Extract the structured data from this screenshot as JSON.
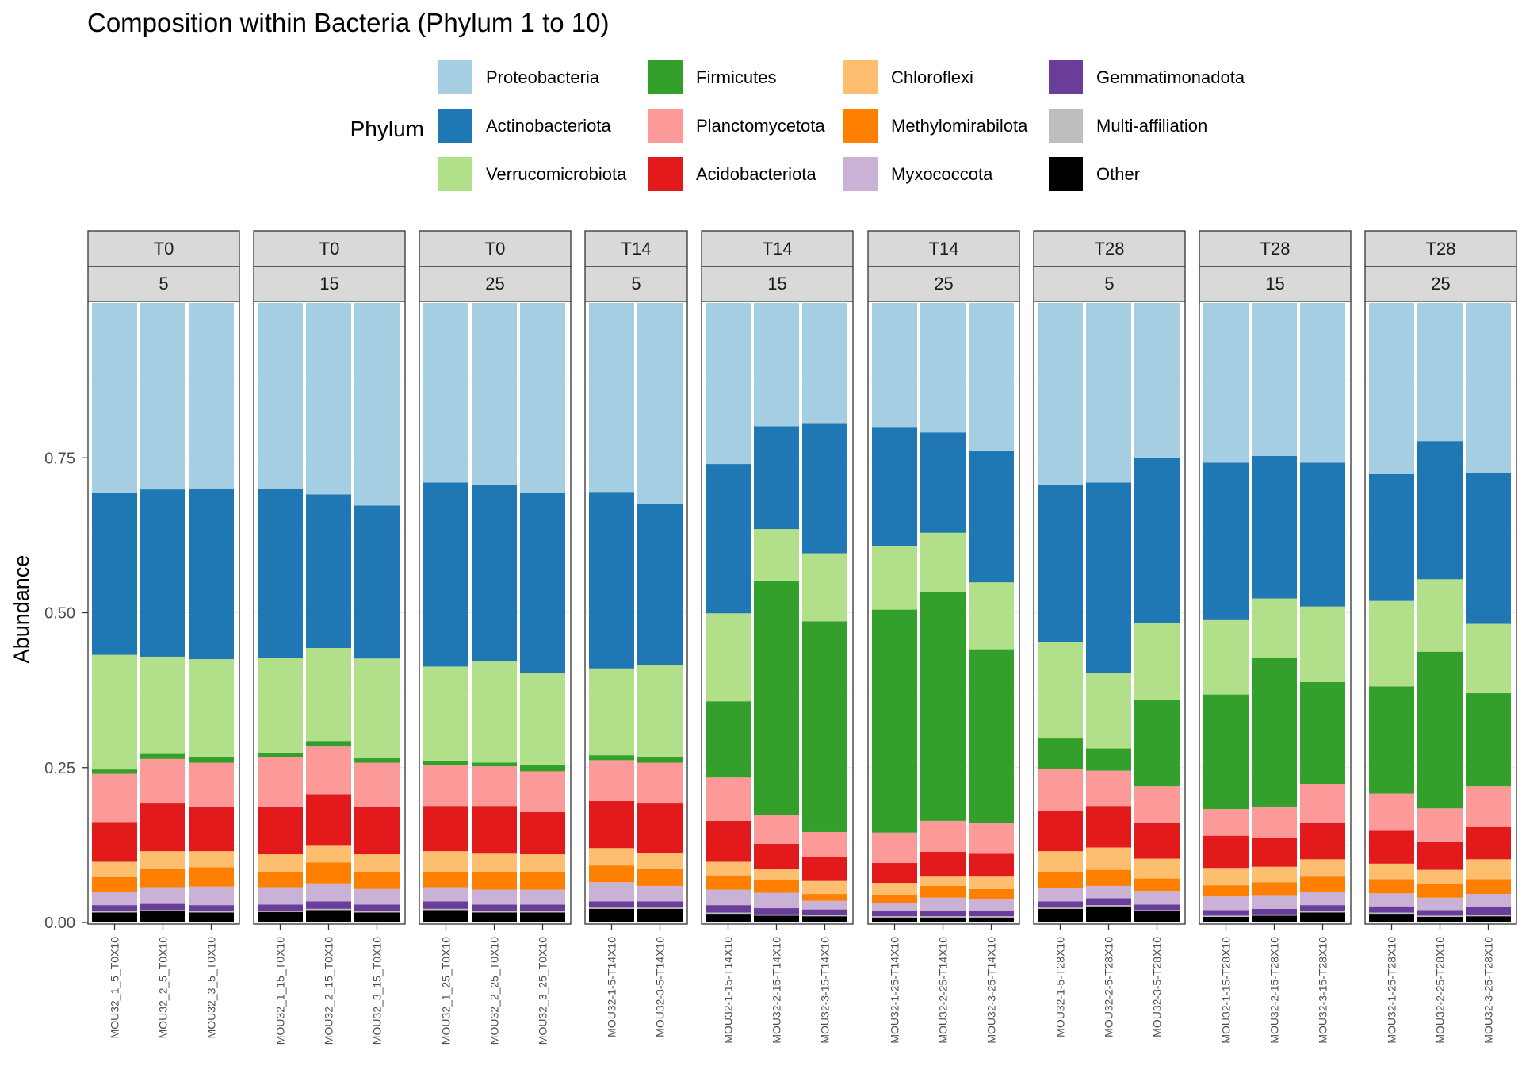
{
  "chart_data": {
    "type": "bar",
    "stacked": true,
    "title": "Composition within Bacteria (Phylum 1 to 10)",
    "xlabel": "",
    "ylabel": "Abundance",
    "ylim": [
      0,
      1
    ],
    "yticks": [
      "0.00",
      "0.25",
      "0.50",
      "0.75"
    ],
    "grid": true,
    "legend": {
      "title": "Phylum",
      "position": "top",
      "items": [
        {
          "name": "Proteobacteria",
          "color": "#A6CEE3"
        },
        {
          "name": "Actinobacteriota",
          "color": "#1F78B4"
        },
        {
          "name": "Verrucomicrobiota",
          "color": "#B2DF8A"
        },
        {
          "name": "Firmicutes",
          "color": "#33A02C"
        },
        {
          "name": "Planctomycetota",
          "color": "#FB9A99"
        },
        {
          "name": "Acidobacteriota",
          "color": "#E31A1C"
        },
        {
          "name": "Chloroflexi",
          "color": "#FDBF6F"
        },
        {
          "name": "Methylomirabilota",
          "color": "#FF7F00"
        },
        {
          "name": "Myxococcota",
          "color": "#CAB2D6"
        },
        {
          "name": "Gemmatimonadota",
          "color": "#6A3D9A"
        },
        {
          "name": "Multi-affiliation",
          "color": "#BEBEBE"
        },
        {
          "name": "Other",
          "color": "#000000"
        }
      ]
    },
    "stack_order": [
      "Other",
      "Multi-affiliation",
      "Gemmatimonadota",
      "Myxococcota",
      "Methylomirabilota",
      "Chloroflexi",
      "Acidobacteriota",
      "Planctomycetota",
      "Firmicutes",
      "Verrucomicrobiota",
      "Actinobacteriota",
      "Proteobacteria"
    ],
    "facets": [
      {
        "time": "T0",
        "depth": "5",
        "samples": [
          {
            "name": "MOU32_1_5_T0X10",
            "values": {
              "Other": 0.016,
              "Multi-affiliation": 0.002,
              "Gemmatimonadota": 0.01,
              "Myxococcota": 0.021,
              "Methylomirabilota": 0.024,
              "Chloroflexi": 0.025,
              "Acidobacteriota": 0.064,
              "Planctomycetota": 0.078,
              "Firmicutes": 0.007,
              "Verrucomicrobiota": 0.185,
              "Actinobacteriota": 0.262,
              "Proteobacteria": 0.306
            }
          },
          {
            "name": "MOU32_2_5_T0X10",
            "values": {
              "Other": 0.018,
              "Multi-affiliation": 0.002,
              "Gemmatimonadota": 0.01,
              "Myxococcota": 0.027,
              "Methylomirabilota": 0.03,
              "Chloroflexi": 0.028,
              "Acidobacteriota": 0.077,
              "Planctomycetota": 0.072,
              "Firmicutes": 0.008,
              "Verrucomicrobiota": 0.157,
              "Actinobacteriota": 0.27,
              "Proteobacteria": 0.301
            }
          },
          {
            "name": "MOU32_3_5_T0X10",
            "values": {
              "Other": 0.016,
              "Multi-affiliation": 0.002,
              "Gemmatimonadota": 0.01,
              "Myxococcota": 0.03,
              "Methylomirabilota": 0.031,
              "Chloroflexi": 0.026,
              "Acidobacteriota": 0.072,
              "Planctomycetota": 0.071,
              "Firmicutes": 0.009,
              "Verrucomicrobiota": 0.158,
              "Actinobacteriota": 0.275,
              "Proteobacteria": 0.3
            }
          }
        ]
      },
      {
        "time": "T0",
        "depth": "15",
        "samples": [
          {
            "name": "MOU32_1_15_T0X10",
            "values": {
              "Other": 0.017,
              "Multi-affiliation": 0.002,
              "Gemmatimonadota": 0.01,
              "Myxococcota": 0.028,
              "Methylomirabilota": 0.025,
              "Chloroflexi": 0.028,
              "Acidobacteriota": 0.077,
              "Planctomycetota": 0.08,
              "Firmicutes": 0.006,
              "Verrucomicrobiota": 0.154,
              "Actinobacteriota": 0.273,
              "Proteobacteria": 0.3
            }
          },
          {
            "name": "MOU32_2_15_T0X10",
            "values": {
              "Other": 0.02,
              "Multi-affiliation": 0.002,
              "Gemmatimonadota": 0.012,
              "Myxococcota": 0.029,
              "Methylomirabilota": 0.034,
              "Chloroflexi": 0.028,
              "Acidobacteriota": 0.082,
              "Planctomycetota": 0.077,
              "Firmicutes": 0.009,
              "Verrucomicrobiota": 0.15,
              "Actinobacteriota": 0.248,
              "Proteobacteria": 0.309
            }
          },
          {
            "name": "MOU32_3_15_T0X10",
            "values": {
              "Other": 0.016,
              "Multi-affiliation": 0.002,
              "Gemmatimonadota": 0.011,
              "Myxococcota": 0.025,
              "Methylomirabilota": 0.027,
              "Chloroflexi": 0.029,
              "Acidobacteriota": 0.076,
              "Planctomycetota": 0.072,
              "Firmicutes": 0.007,
              "Verrucomicrobiota": 0.161,
              "Actinobacteriota": 0.247,
              "Proteobacteria": 0.327
            }
          }
        ]
      },
      {
        "time": "T0",
        "depth": "25",
        "samples": [
          {
            "name": "MOU32_1_25_T0X10",
            "values": {
              "Other": 0.02,
              "Multi-affiliation": 0.002,
              "Gemmatimonadota": 0.012,
              "Myxococcota": 0.023,
              "Methylomirabilota": 0.025,
              "Chloroflexi": 0.033,
              "Acidobacteriota": 0.073,
              "Planctomycetota": 0.066,
              "Firmicutes": 0.006,
              "Verrucomicrobiota": 0.153,
              "Actinobacteriota": 0.297,
              "Proteobacteria": 0.29
            }
          },
          {
            "name": "MOU32_2_25_T0X10",
            "values": {
              "Other": 0.016,
              "Multi-affiliation": 0.002,
              "Gemmatimonadota": 0.011,
              "Myxococcota": 0.024,
              "Methylomirabilota": 0.029,
              "Chloroflexi": 0.029,
              "Acidobacteriota": 0.077,
              "Planctomycetota": 0.064,
              "Firmicutes": 0.006,
              "Verrucomicrobiota": 0.164,
              "Actinobacteriota": 0.285,
              "Proteobacteria": 0.293
            }
          },
          {
            "name": "MOU32_3_25_T0X10",
            "values": {
              "Other": 0.016,
              "Multi-affiliation": 0.002,
              "Gemmatimonadota": 0.011,
              "Myxococcota": 0.024,
              "Methylomirabilota": 0.028,
              "Chloroflexi": 0.029,
              "Acidobacteriota": 0.068,
              "Planctomycetota": 0.066,
              "Firmicutes": 0.01,
              "Verrucomicrobiota": 0.149,
              "Actinobacteriota": 0.29,
              "Proteobacteria": 0.307
            }
          }
        ]
      },
      {
        "time": "T14",
        "depth": "5",
        "samples": [
          {
            "name": "MOU32-1-5-T14X10",
            "values": {
              "Other": 0.022,
              "Multi-affiliation": 0.002,
              "Gemmatimonadota": 0.01,
              "Myxococcota": 0.031,
              "Methylomirabilota": 0.027,
              "Chloroflexi": 0.028,
              "Acidobacteriota": 0.076,
              "Planctomycetota": 0.066,
              "Firmicutes": 0.008,
              "Verrucomicrobiota": 0.14,
              "Actinobacteriota": 0.285,
              "Proteobacteria": 0.305
            }
          },
          {
            "name": "MOU32-3-5-T14X10",
            "values": {
              "Other": 0.022,
              "Multi-affiliation": 0.002,
              "Gemmatimonadota": 0.01,
              "Myxococcota": 0.025,
              "Methylomirabilota": 0.027,
              "Chloroflexi": 0.026,
              "Acidobacteriota": 0.08,
              "Planctomycetota": 0.066,
              "Firmicutes": 0.009,
              "Verrucomicrobiota": 0.148,
              "Actinobacteriota": 0.26,
              "Proteobacteria": 0.325
            }
          }
        ]
      },
      {
        "time": "T14",
        "depth": "15",
        "samples": [
          {
            "name": "MOU32-1-15-T14X10",
            "values": {
              "Other": 0.014,
              "Multi-affiliation": 0.002,
              "Gemmatimonadota": 0.012,
              "Myxococcota": 0.025,
              "Methylomirabilota": 0.023,
              "Chloroflexi": 0.022,
              "Acidobacteriota": 0.066,
              "Planctomycetota": 0.07,
              "Firmicutes": 0.123,
              "Verrucomicrobiota": 0.142,
              "Actinobacteriota": 0.241,
              "Proteobacteria": 0.26
            }
          },
          {
            "name": "MOU32-2-15-T14X10",
            "values": {
              "Other": 0.011,
              "Multi-affiliation": 0.002,
              "Gemmatimonadota": 0.01,
              "Myxococcota": 0.025,
              "Methylomirabilota": 0.021,
              "Chloroflexi": 0.018,
              "Acidobacteriota": 0.04,
              "Planctomycetota": 0.047,
              "Firmicutes": 0.378,
              "Verrucomicrobiota": 0.083,
              "Actinobacteriota": 0.166,
              "Proteobacteria": 0.199
            }
          },
          {
            "name": "MOU32-3-15-T14X10",
            "values": {
              "Other": 0.01,
              "Multi-affiliation": 0.002,
              "Gemmatimonadota": 0.009,
              "Myxococcota": 0.014,
              "Methylomirabilota": 0.011,
              "Chloroflexi": 0.021,
              "Acidobacteriota": 0.038,
              "Planctomycetota": 0.041,
              "Firmicutes": 0.34,
              "Verrucomicrobiota": 0.11,
              "Actinobacteriota": 0.21,
              "Proteobacteria": 0.194
            }
          }
        ]
      },
      {
        "time": "T14",
        "depth": "25",
        "samples": [
          {
            "name": "MOU32-1-25-T14X10",
            "values": {
              "Other": 0.008,
              "Multi-affiliation": 0.002,
              "Gemmatimonadota": 0.008,
              "Myxococcota": 0.013,
              "Methylomirabilota": 0.013,
              "Chloroflexi": 0.02,
              "Acidobacteriota": 0.032,
              "Planctomycetota": 0.049,
              "Firmicutes": 0.36,
              "Verrucomicrobiota": 0.103,
              "Actinobacteriota": 0.192,
              "Proteobacteria": 0.2
            }
          },
          {
            "name": "MOU32-2-25-T14X10",
            "values": {
              "Other": 0.008,
              "Multi-affiliation": 0.002,
              "Gemmatimonadota": 0.009,
              "Myxococcota": 0.021,
              "Methylomirabilota": 0.019,
              "Chloroflexi": 0.015,
              "Acidobacteriota": 0.04,
              "Planctomycetota": 0.05,
              "Firmicutes": 0.37,
              "Verrucomicrobiota": 0.095,
              "Actinobacteriota": 0.162,
              "Proteobacteria": 0.209
            }
          },
          {
            "name": "MOU32-3-25-T14X10",
            "values": {
              "Other": 0.008,
              "Multi-affiliation": 0.002,
              "Gemmatimonadota": 0.009,
              "Myxococcota": 0.018,
              "Methylomirabilota": 0.017,
              "Chloroflexi": 0.02,
              "Acidobacteriota": 0.037,
              "Planctomycetota": 0.05,
              "Firmicutes": 0.28,
              "Verrucomicrobiota": 0.108,
              "Actinobacteriota": 0.213,
              "Proteobacteria": 0.238
            }
          }
        ]
      },
      {
        "time": "T28",
        "depth": "5",
        "samples": [
          {
            "name": "MOU32-1-5-T28X10",
            "values": {
              "Other": 0.022,
              "Multi-affiliation": 0.002,
              "Gemmatimonadota": 0.01,
              "Myxococcota": 0.021,
              "Methylomirabilota": 0.026,
              "Chloroflexi": 0.034,
              "Acidobacteriota": 0.065,
              "Planctomycetota": 0.068,
              "Firmicutes": 0.049,
              "Verrucomicrobiota": 0.156,
              "Actinobacteriota": 0.254,
              "Proteobacteria": 0.293
            }
          },
          {
            "name": "MOU32-2-5-T28X10",
            "values": {
              "Other": 0.026,
              "Multi-affiliation": 0.002,
              "Gemmatimonadota": 0.011,
              "Myxococcota": 0.02,
              "Methylomirabilota": 0.026,
              "Chloroflexi": 0.036,
              "Acidobacteriota": 0.067,
              "Planctomycetota": 0.057,
              "Firmicutes": 0.036,
              "Verrucomicrobiota": 0.122,
              "Actinobacteriota": 0.307,
              "Proteobacteria": 0.29
            }
          },
          {
            "name": "MOU32-3-5-T28X10",
            "values": {
              "Other": 0.018,
              "Multi-affiliation": 0.002,
              "Gemmatimonadota": 0.009,
              "Myxococcota": 0.022,
              "Methylomirabilota": 0.02,
              "Chloroflexi": 0.032,
              "Acidobacteriota": 0.058,
              "Planctomycetota": 0.059,
              "Firmicutes": 0.14,
              "Verrucomicrobiota": 0.124,
              "Actinobacteriota": 0.266,
              "Proteobacteria": 0.25
            }
          }
        ]
      },
      {
        "time": "T28",
        "depth": "15",
        "samples": [
          {
            "name": "MOU32-1-15-T28X10",
            "values": {
              "Other": 0.009,
              "Multi-affiliation": 0.002,
              "Gemmatimonadota": 0.009,
              "Myxococcota": 0.022,
              "Methylomirabilota": 0.018,
              "Chloroflexi": 0.028,
              "Acidobacteriota": 0.052,
              "Planctomycetota": 0.043,
              "Firmicutes": 0.185,
              "Verrucomicrobiota": 0.12,
              "Actinobacteriota": 0.254,
              "Proteobacteria": 0.258
            }
          },
          {
            "name": "MOU32-2-15-T28X10",
            "values": {
              "Other": 0.011,
              "Multi-affiliation": 0.002,
              "Gemmatimonadota": 0.009,
              "Myxococcota": 0.021,
              "Methylomirabilota": 0.022,
              "Chloroflexi": 0.025,
              "Acidobacteriota": 0.047,
              "Planctomycetota": 0.05,
              "Firmicutes": 0.24,
              "Verrucomicrobiota": 0.096,
              "Actinobacteriota": 0.23,
              "Proteobacteria": 0.247
            }
          },
          {
            "name": "MOU32-3-15-T28X10",
            "values": {
              "Other": 0.016,
              "Multi-affiliation": 0.002,
              "Gemmatimonadota": 0.01,
              "Myxococcota": 0.021,
              "Methylomirabilota": 0.025,
              "Chloroflexi": 0.028,
              "Acidobacteriota": 0.059,
              "Planctomycetota": 0.062,
              "Firmicutes": 0.165,
              "Verrucomicrobiota": 0.122,
              "Actinobacteriota": 0.232,
              "Proteobacteria": 0.258
            }
          }
        ]
      },
      {
        "time": "T28",
        "depth": "25",
        "samples": [
          {
            "name": "MOU32-1-25-T28X10",
            "values": {
              "Other": 0.014,
              "Multi-affiliation": 0.002,
              "Gemmatimonadota": 0.01,
              "Myxococcota": 0.021,
              "Methylomirabilota": 0.023,
              "Chloroflexi": 0.025,
              "Acidobacteriota": 0.053,
              "Planctomycetota": 0.06,
              "Firmicutes": 0.173,
              "Verrucomicrobiota": 0.138,
              "Actinobacteriota": 0.206,
              "Proteobacteria": 0.275
            }
          },
          {
            "name": "MOU32-2-25-T28X10",
            "values": {
              "Other": 0.009,
              "Multi-affiliation": 0.002,
              "Gemmatimonadota": 0.009,
              "Myxococcota": 0.02,
              "Methylomirabilota": 0.022,
              "Chloroflexi": 0.023,
              "Acidobacteriota": 0.045,
              "Planctomycetota": 0.054,
              "Firmicutes": 0.253,
              "Verrucomicrobiota": 0.117,
              "Actinobacteriota": 0.223,
              "Proteobacteria": 0.223
            }
          },
          {
            "name": "MOU32-3-25-T28X10",
            "values": {
              "Other": 0.01,
              "Multi-affiliation": 0.002,
              "Gemmatimonadota": 0.013,
              "Myxococcota": 0.021,
              "Methylomirabilota": 0.024,
              "Chloroflexi": 0.032,
              "Acidobacteriota": 0.052,
              "Planctomycetota": 0.066,
              "Firmicutes": 0.15,
              "Verrucomicrobiota": 0.112,
              "Actinobacteriota": 0.244,
              "Proteobacteria": 0.274
            }
          }
        ]
      }
    ]
  }
}
